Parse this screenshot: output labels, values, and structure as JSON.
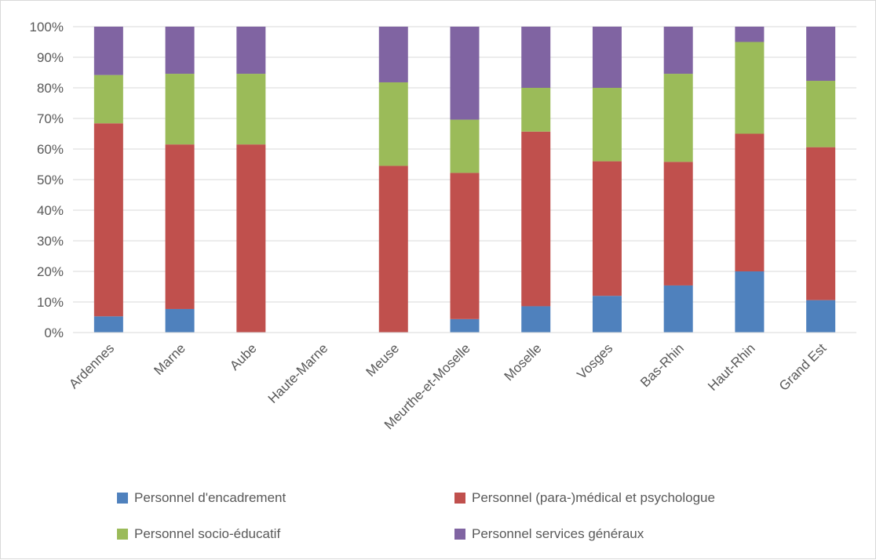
{
  "chart_data": {
    "type": "bar",
    "stacked": true,
    "percent": true,
    "categories": [
      "Ardennes",
      "Marne",
      "Aube",
      "Haute-Marne",
      "Meuse",
      "Meurthe-et-Moselle",
      "Moselle",
      "Vosges",
      "Bas-Rhin",
      "Haut-Rhin",
      "Grand Est"
    ],
    "series": [
      {
        "name": "Personnel d'encadrement",
        "color": "#4f81bd",
        "values": [
          5.3,
          7.7,
          0,
          0,
          0,
          4.4,
          8.6,
          12.0,
          15.4,
          20.0,
          10.6
        ]
      },
      {
        "name": "Personnel (para-)médical et psychologue",
        "color": "#c0504d",
        "values": [
          63.1,
          53.8,
          61.5,
          0,
          54.5,
          47.8,
          57.1,
          44.0,
          40.4,
          45.0,
          50.0
        ]
      },
      {
        "name": "Personnel socio-éducatif",
        "color": "#9bbb59",
        "values": [
          15.8,
          23.1,
          23.1,
          0,
          27.3,
          17.4,
          14.3,
          24.0,
          28.8,
          30.0,
          21.7
        ]
      },
      {
        "name": "Personnel services généraux",
        "color": "#8064a2",
        "values": [
          15.8,
          15.4,
          15.4,
          0,
          18.2,
          30.4,
          20.0,
          20.0,
          15.4,
          5.0,
          17.7
        ]
      }
    ],
    "yticks": [
      "0%",
      "10%",
      "20%",
      "30%",
      "40%",
      "50%",
      "60%",
      "70%",
      "80%",
      "90%",
      "100%"
    ],
    "ylim": [
      0,
      100
    ],
    "grid": true,
    "legend_position": "bottom"
  }
}
